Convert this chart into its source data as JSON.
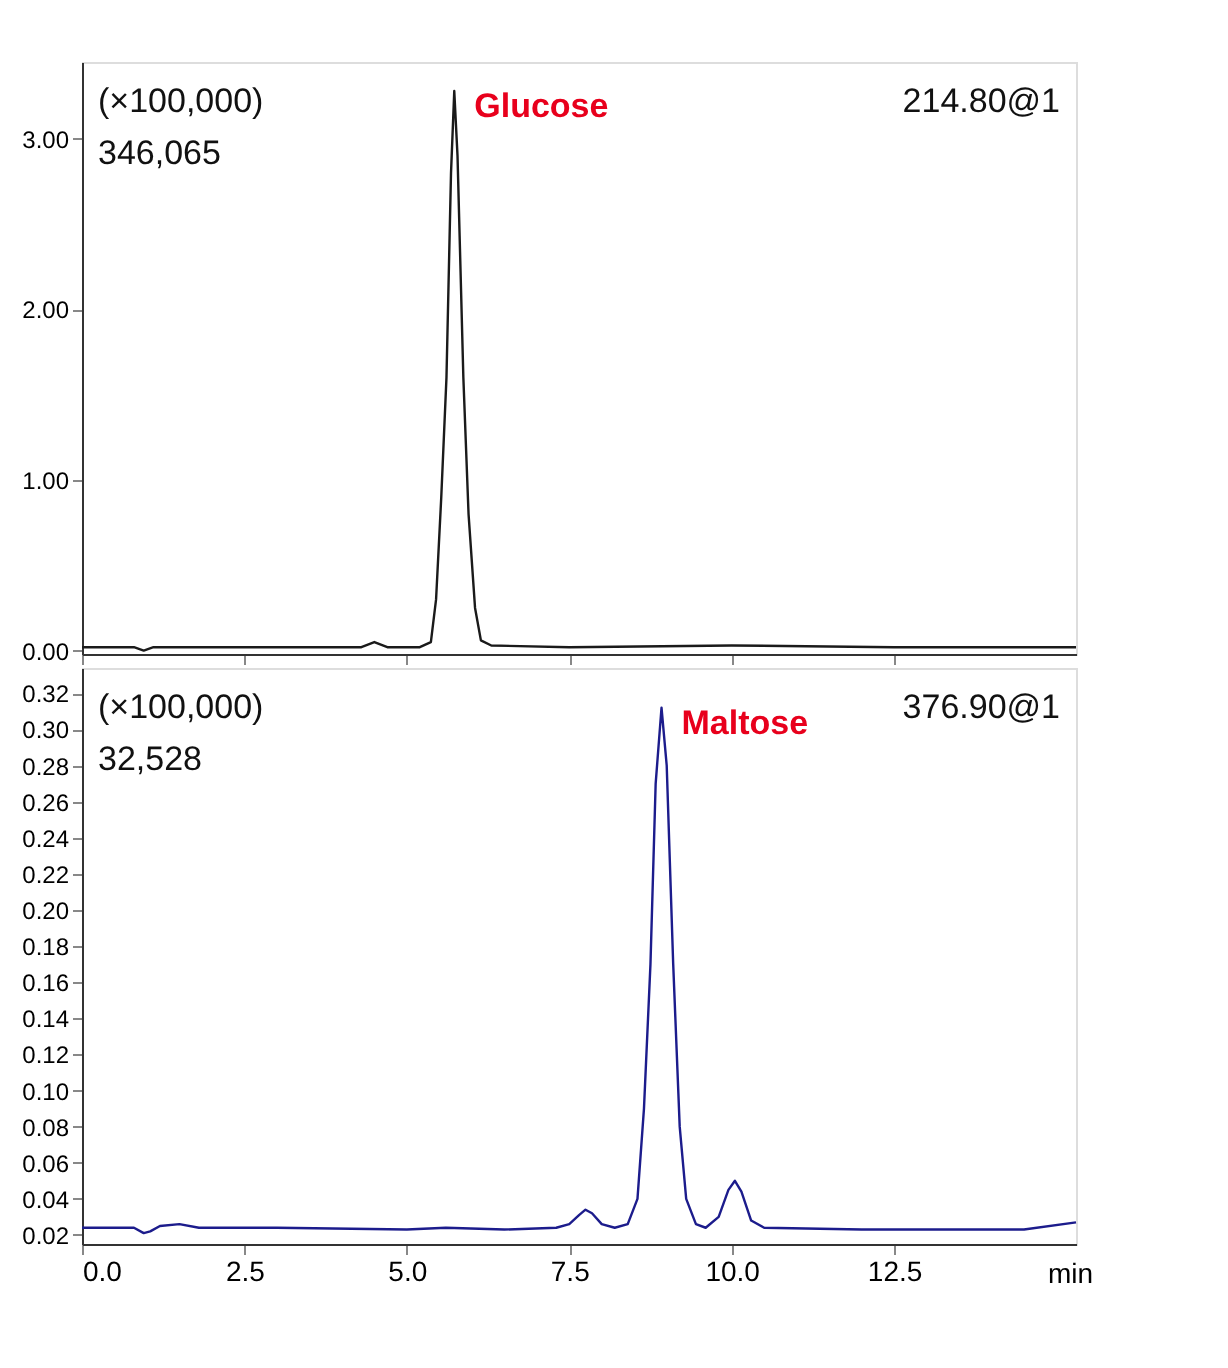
{
  "chart_data": [
    {
      "type": "line",
      "tick_labels": "y",
      "grid": false,
      "marker": "none",
      "line_style": "solid",
      "xlim": [
        0,
        15.3
      ],
      "xticks": [
        {
          "value": 0,
          "label": null
        },
        {
          "value": 2.5,
          "label": null
        },
        {
          "value": 5,
          "label": null
        },
        {
          "value": 7.5,
          "label": null
        },
        {
          "value": 10,
          "label": null
        },
        {
          "value": 12.5,
          "label": null
        }
      ],
      "ylim": [
        -0.02,
        3.45
      ],
      "yticks": [
        {
          "value": 0,
          "label": "0.00"
        },
        {
          "value": 1,
          "label": "1.00"
        },
        {
          "value": 2,
          "label": "2.00"
        },
        {
          "value": 3,
          "label": "3.00"
        }
      ],
      "annotations": [
        "(×100,000)",
        "346,065",
        "214.80@1",
        {
          "text": "Glucose",
          "x": 5.73,
          "y": 3.28
        }
      ],
      "series": [
        {
          "color": "#1a1a1a",
          "x": [
            0,
            0.8,
            0.95,
            1.1,
            2.5,
            4.3,
            4.5,
            4.7,
            5.2,
            5.37,
            5.45,
            5.53,
            5.61,
            5.68,
            5.73,
            5.78,
            5.87,
            5.95,
            6.05,
            6.14,
            6.3,
            7.5,
            10,
            12.5,
            15.3
          ],
          "values": [
            0.02,
            0.02,
            0.0,
            0.02,
            0.02,
            0.02,
            0.05,
            0.02,
            0.02,
            0.05,
            0.3,
            0.9,
            1.6,
            2.8,
            3.28,
            2.9,
            1.6,
            0.8,
            0.25,
            0.06,
            0.03,
            0.02,
            0.03,
            0.02,
            0.02
          ]
        }
      ]
    },
    {
      "type": "line",
      "grid": false,
      "marker": "none",
      "line_style": "solid",
      "xlabel": "min",
      "xlim": [
        0,
        15.3
      ],
      "xticks": [
        {
          "value": 0,
          "label": "0.0"
        },
        {
          "value": 2.5,
          "label": "2.5"
        },
        {
          "value": 5,
          "label": "5.0"
        },
        {
          "value": 7.5,
          "label": "7.5"
        },
        {
          "value": 10,
          "label": "10.0"
        },
        {
          "value": 12.5,
          "label": "12.5"
        }
      ],
      "ylim": [
        0.015,
        0.334
      ],
      "yticks": [
        0.02,
        0.04,
        0.06,
        0.08,
        {
          "value": 0.1,
          "label": "0.10"
        },
        0.12,
        0.14,
        0.16,
        0.18,
        {
          "value": 0.2,
          "label": "0.20"
        },
        0.22,
        0.24,
        0.26,
        0.28,
        {
          "value": 0.3,
          "label": "0.30"
        },
        0.32
      ],
      "annotations": [
        "(×100,000)",
        "32,528",
        "376.90@1",
        {
          "text": "Maltose",
          "x": 8.92,
          "y": 0.312
        }
      ],
      "series": [
        {
          "color": "#1c1c8c",
          "x": [
            0,
            0.8,
            0.95,
            1.05,
            1.2,
            1.5,
            1.8,
            3,
            5,
            5.6,
            6.5,
            7.3,
            7.5,
            7.65,
            7.75,
            7.85,
            8.0,
            8.2,
            8.4,
            8.55,
            8.65,
            8.75,
            8.83,
            8.92,
            9.0,
            9.1,
            9.2,
            9.3,
            9.45,
            9.6,
            9.8,
            9.95,
            10.05,
            10.15,
            10.3,
            10.5,
            12,
            14.5,
            15.3
          ],
          "values": [
            0.024,
            0.024,
            0.021,
            0.022,
            0.025,
            0.026,
            0.024,
            0.024,
            0.023,
            0.024,
            0.023,
            0.024,
            0.026,
            0.031,
            0.034,
            0.032,
            0.026,
            0.024,
            0.026,
            0.04,
            0.09,
            0.17,
            0.27,
            0.312,
            0.28,
            0.17,
            0.08,
            0.04,
            0.026,
            0.024,
            0.03,
            0.045,
            0.05,
            0.044,
            0.028,
            0.024,
            0.023,
            0.023,
            0.027
          ]
        }
      ]
    }
  ]
}
